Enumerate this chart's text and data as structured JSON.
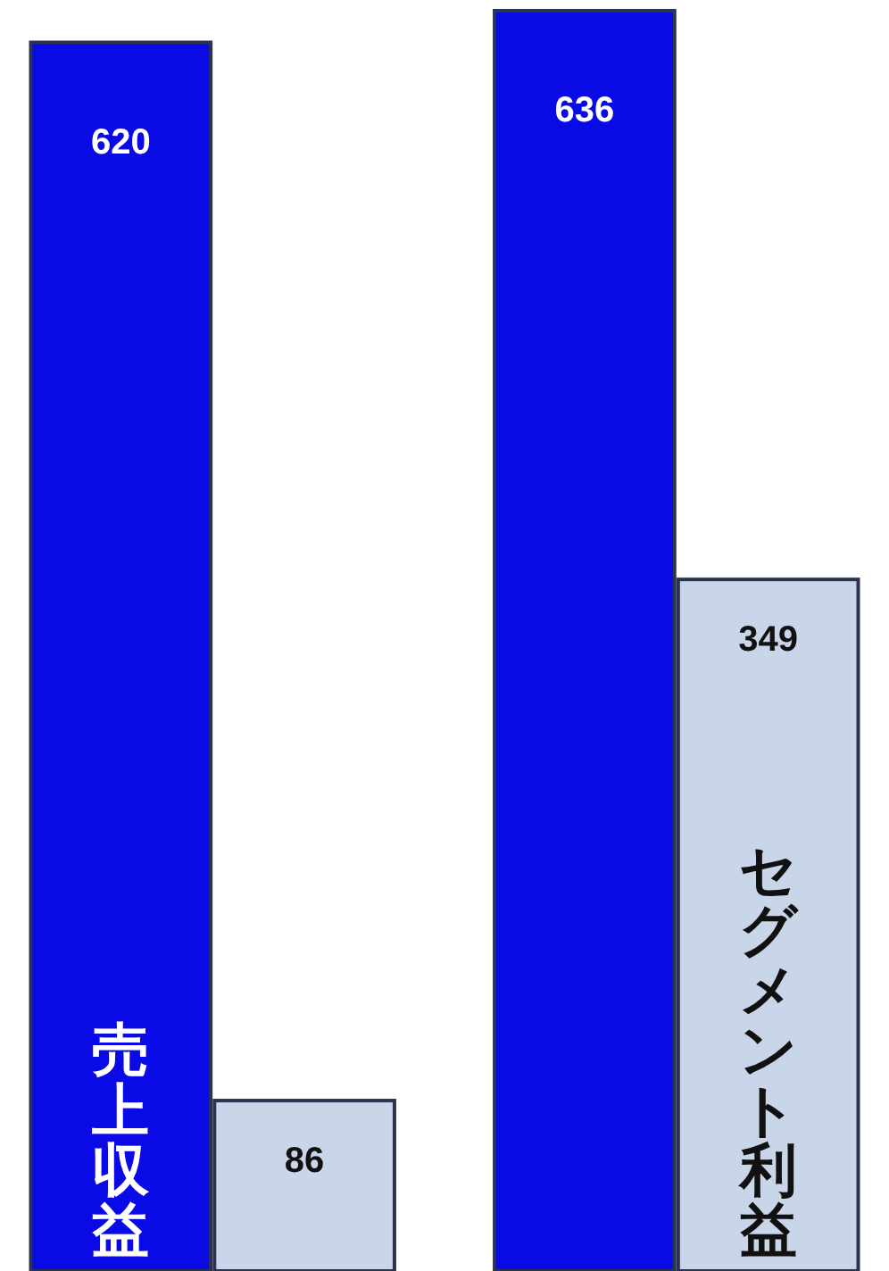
{
  "chart_data": {
    "type": "bar",
    "categories": [
      null,
      null
    ],
    "series": [
      {
        "name": "売上収益",
        "color": "#0a0ae6",
        "values": [
          620,
          636
        ]
      },
      {
        "name": "セグメント利益",
        "color": "#c9d5e8",
        "values": [
          86,
          349
        ]
      }
    ],
    "data_labels": true,
    "legend": false
  }
}
